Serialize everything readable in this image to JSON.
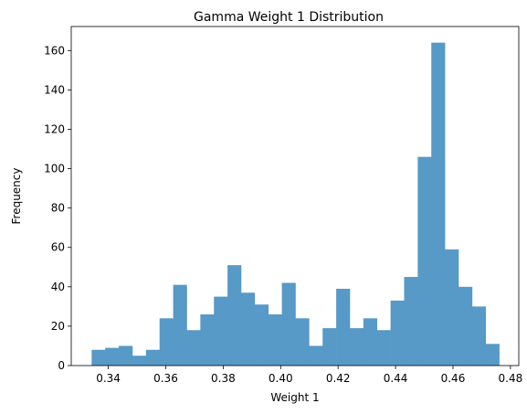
{
  "chart_data": {
    "type": "bar",
    "title": "Gamma Weight 1 Distribution",
    "xlabel": "Weight 1",
    "ylabel": "Frequency",
    "bin_start": 0.3342,
    "bin_width": 0.00473,
    "values": [
      8,
      9,
      10,
      5,
      8,
      24,
      41,
      18,
      26,
      35,
      51,
      37,
      31,
      26,
      42,
      24,
      10,
      19,
      39,
      19,
      24,
      18,
      33,
      45,
      106,
      164,
      59,
      40,
      30,
      11
    ],
    "xlim": [
      0.3271,
      0.4829
    ],
    "ylim": [
      0,
      172.2
    ],
    "xticks": [
      0.34,
      0.36,
      0.38,
      0.4,
      0.42,
      0.44,
      0.46,
      0.48
    ],
    "xtick_labels": [
      "0.34",
      "0.36",
      "0.38",
      "0.40",
      "0.42",
      "0.44",
      "0.46",
      "0.48"
    ],
    "yticks": [
      0,
      20,
      40,
      60,
      80,
      100,
      120,
      140,
      160
    ],
    "ytick_labels": [
      "0",
      "20",
      "40",
      "60",
      "80",
      "100",
      "120",
      "140",
      "160"
    ],
    "bar_color": "#5799c7",
    "grid": false,
    "legend": "none"
  }
}
